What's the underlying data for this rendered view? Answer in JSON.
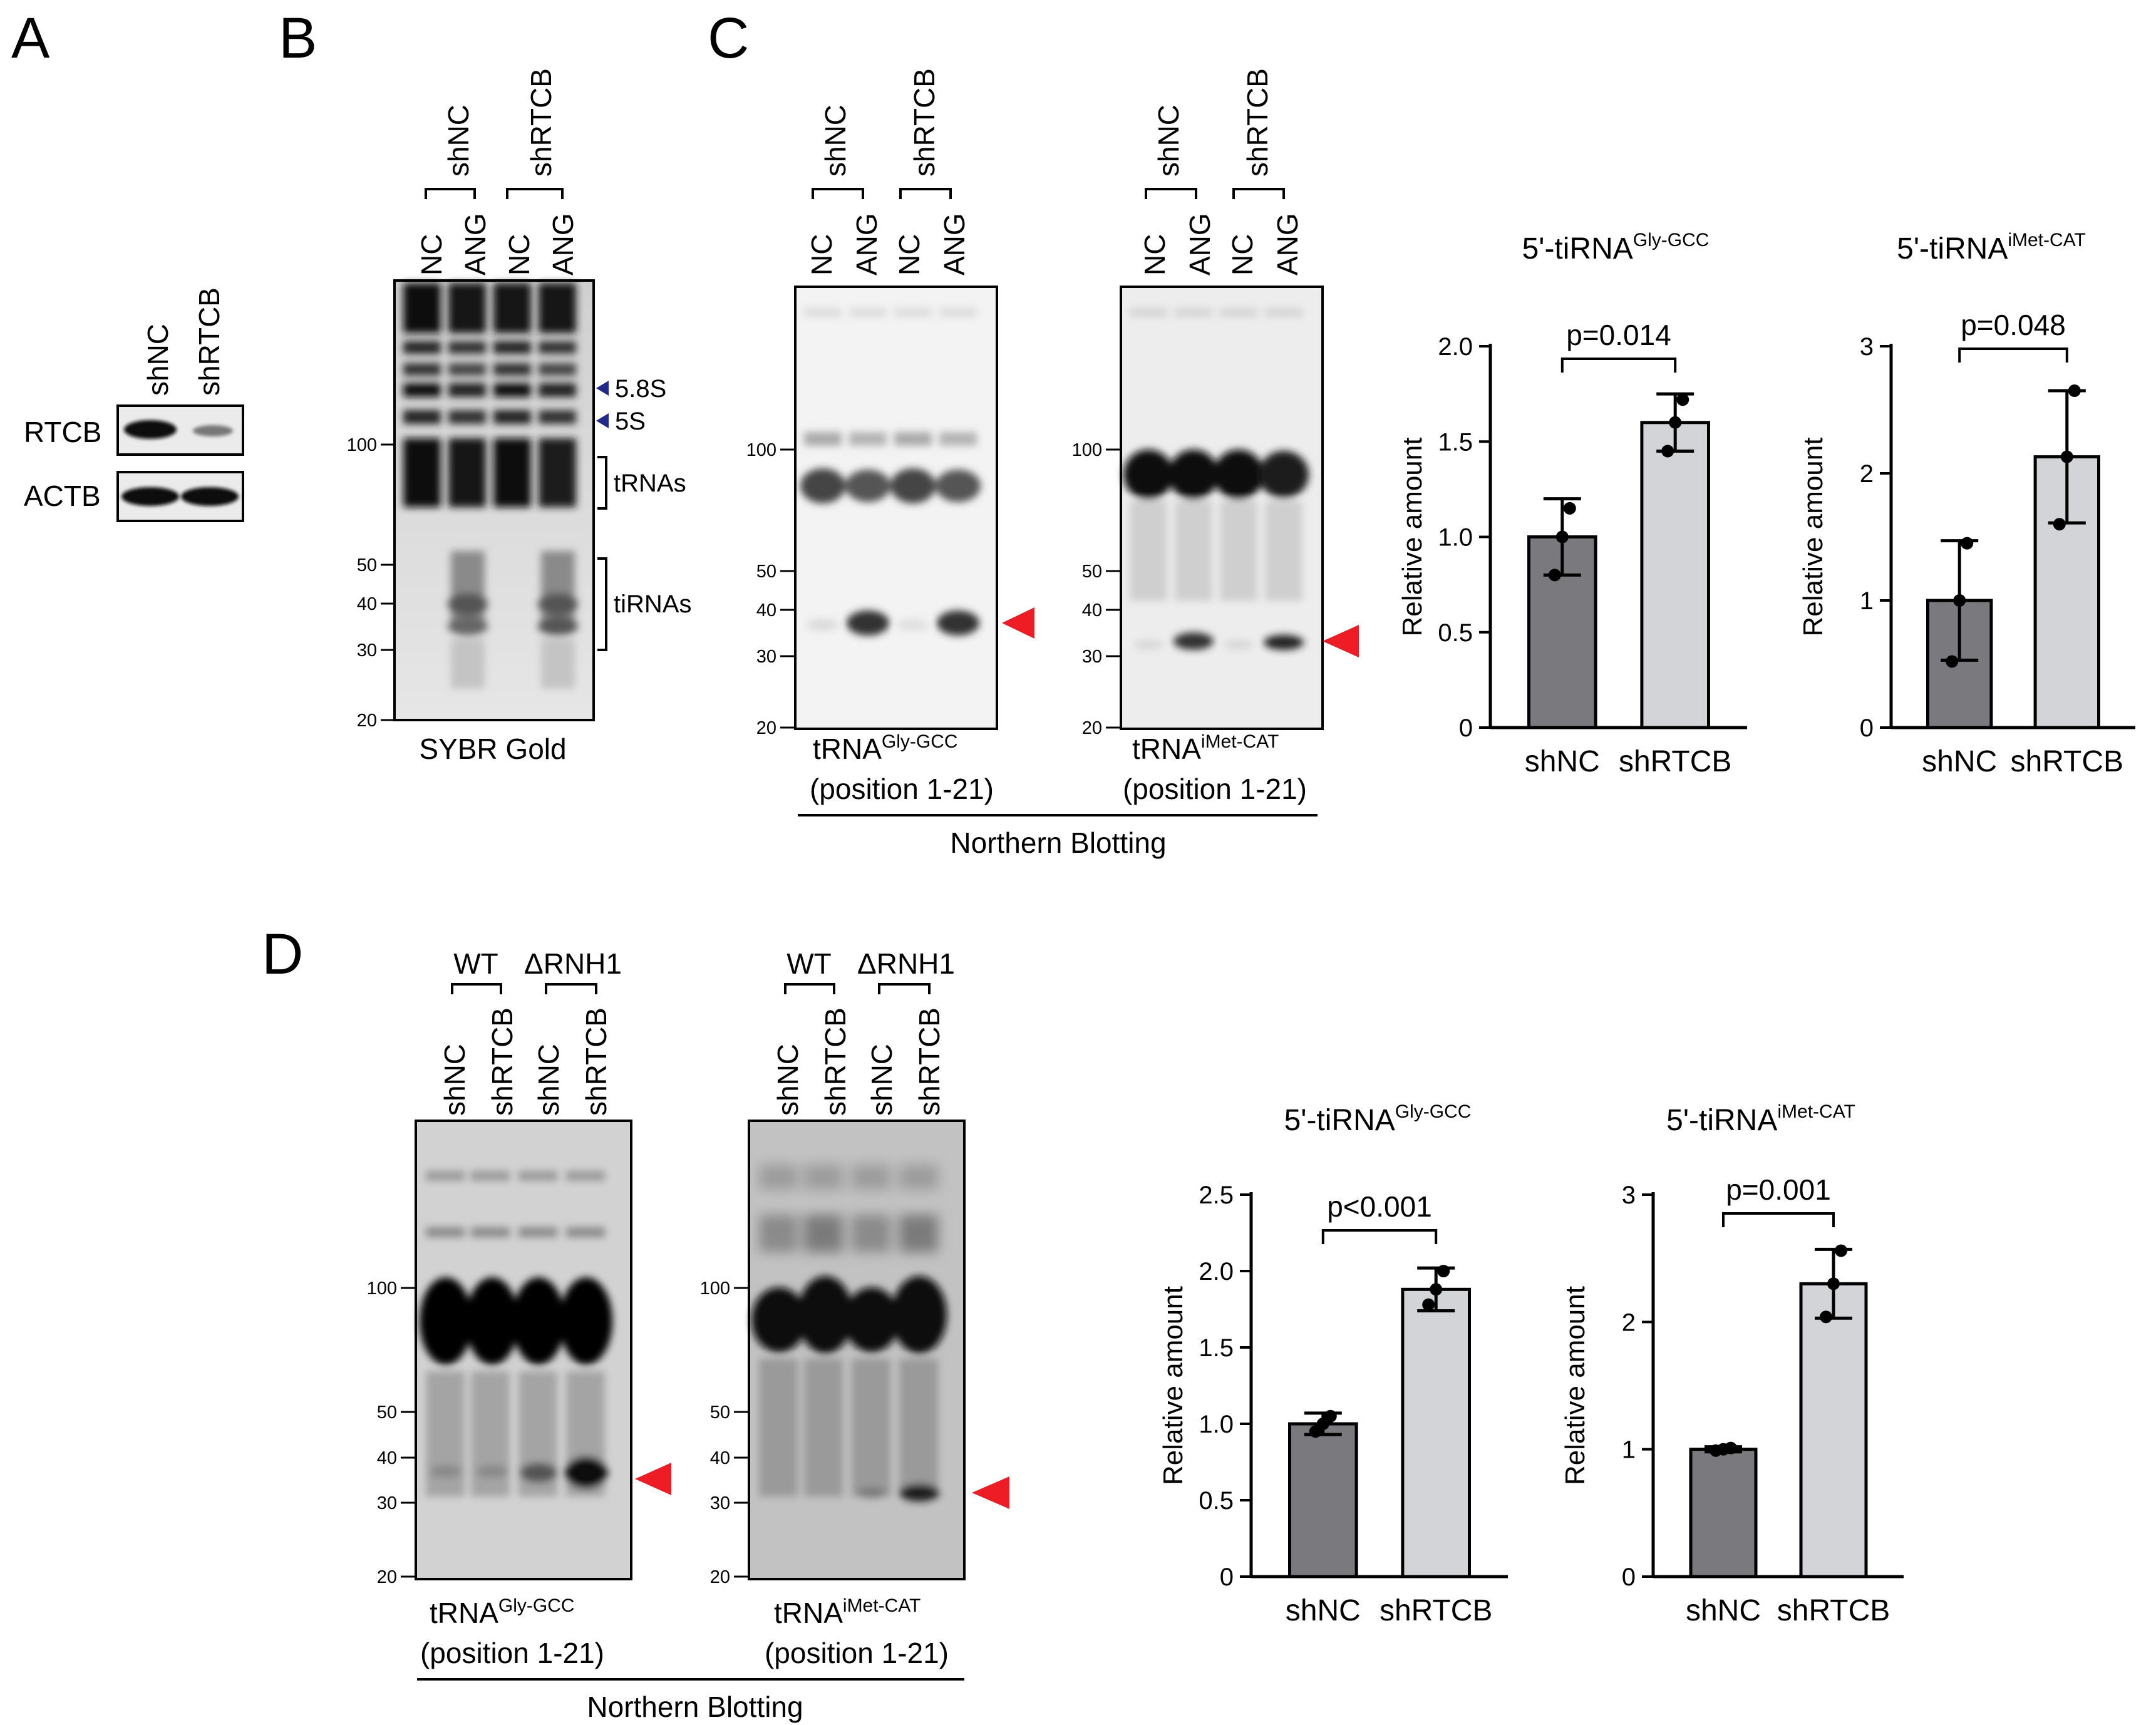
{
  "panels": {
    "A": {
      "letter": "A",
      "lanes": [
        "shNC",
        "shRTCB"
      ],
      "rows": [
        "RTCB",
        "ACTB"
      ]
    },
    "B": {
      "letter": "B",
      "groups": [
        "shNC",
        "shRTCB"
      ],
      "lanes": [
        "NC",
        "ANG",
        "NC",
        "ANG"
      ],
      "mw": [
        "100",
        "50",
        "40",
        "30",
        "20"
      ],
      "markers": [
        "5.8S",
        "5S"
      ],
      "brackets": [
        "tRNAs",
        "tiRNAs"
      ],
      "stain": "SYBR Gold"
    },
    "C": {
      "letter": "C",
      "groups": [
        "shNC",
        "shRTCB"
      ],
      "lanes": [
        "NC",
        "ANG",
        "NC",
        "ANG"
      ],
      "mw": [
        "100",
        "50",
        "40",
        "30",
        "20"
      ],
      "blot1_label": "tRNA",
      "blot1_sup": "Gly-GCC",
      "blot1_pos": "(position 1-21)",
      "blot2_label": "tRNA",
      "blot2_sup": "iMet-CAT",
      "blot2_pos": "(position 1-21)",
      "method": "Northern Blotting"
    },
    "D": {
      "letter": "D",
      "groups": [
        "WT",
        "ΔRNH1"
      ],
      "lanes": [
        "shNC",
        "shRTCB",
        "shNC",
        "shRTCB"
      ],
      "mw": [
        "100",
        "50",
        "40",
        "30",
        "20"
      ],
      "blot1_label": "tRNA",
      "blot1_sup": "Gly-GCC",
      "blot1_pos": "(position 1-21)",
      "blot2_label": "tRNA",
      "blot2_sup": "iMet-CAT",
      "blot2_pos": "(position 1-21)",
      "method": "Northern Blotting"
    }
  },
  "chart_data": [
    {
      "id": "C1",
      "type": "bar",
      "title_main": "5'-tiRNA",
      "title_sup": "Gly-GCC",
      "ylabel": "Relative amount",
      "categories": [
        "shNC",
        "shRTCB"
      ],
      "values": [
        1.0,
        1.6
      ],
      "sd": [
        0.2,
        0.15
      ],
      "points": [
        [
          0.8,
          1.0,
          1.15
        ],
        [
          1.45,
          1.6,
          1.72
        ]
      ],
      "ylim": [
        0,
        2.0
      ],
      "yticks": [
        0,
        0.5,
        1.0,
        1.5,
        2.0
      ],
      "ytick_labels": [
        "0",
        "0.5",
        "1.0",
        "1.5",
        "2.0"
      ],
      "pvalue": "p=0.014",
      "colors": [
        "#7a7a7e",
        "#d3d4d8"
      ]
    },
    {
      "id": "C2",
      "type": "bar",
      "title_main": "5'-tiRNA",
      "title_sup": "iMet-CAT",
      "ylabel": "Relative amount",
      "categories": [
        "shNC",
        "shRTCB"
      ],
      "values": [
        1.0,
        2.13
      ],
      "sd": [
        0.47,
        0.52
      ],
      "points": [
        [
          0.52,
          1.0,
          1.45
        ],
        [
          1.6,
          2.13,
          2.65
        ]
      ],
      "ylim": [
        0,
        3
      ],
      "yticks": [
        0,
        1,
        2,
        3
      ],
      "ytick_labels": [
        "0",
        "1",
        "2",
        "3"
      ],
      "pvalue": "p=0.048",
      "colors": [
        "#7a7a7e",
        "#d3d4d8"
      ]
    },
    {
      "id": "D1",
      "type": "bar",
      "title_main": "5'-tiRNA",
      "title_sup": "Gly-GCC",
      "ylabel": "Relative amount",
      "categories": [
        "shNC",
        "shRTCB"
      ],
      "values": [
        1.0,
        1.88
      ],
      "sd": [
        0.07,
        0.14
      ],
      "points": [
        [
          0.95,
          1.0,
          1.05
        ],
        [
          1.78,
          1.88,
          2.0
        ]
      ],
      "ylim": [
        0,
        2.5
      ],
      "yticks": [
        0,
        0.5,
        1.0,
        1.5,
        2.0,
        2.5
      ],
      "ytick_labels": [
        "0",
        "0.5",
        "1.0",
        "1.5",
        "2.0",
        "2.5"
      ],
      "pvalue": "p<0.001",
      "colors": [
        "#7a7a7e",
        "#d3d4d8"
      ]
    },
    {
      "id": "D2",
      "type": "bar",
      "title_main": "5'-tiRNA",
      "title_sup": "iMet-CAT",
      "ylabel": "Relative amount",
      "categories": [
        "shNC",
        "shRTCB"
      ],
      "values": [
        1.0,
        2.3
      ],
      "sd": [
        0.02,
        0.27
      ],
      "points": [
        [
          0.99,
          1.0,
          1.01
        ],
        [
          2.04,
          2.3,
          2.56
        ]
      ],
      "ylim": [
        0,
        3
      ],
      "yticks": [
        0,
        1,
        2,
        3
      ],
      "ytick_labels": [
        "0",
        "1",
        "2",
        "3"
      ],
      "pvalue": "p=0.001",
      "colors": [
        "#7a7a7e",
        "#d3d4d8"
      ]
    }
  ]
}
